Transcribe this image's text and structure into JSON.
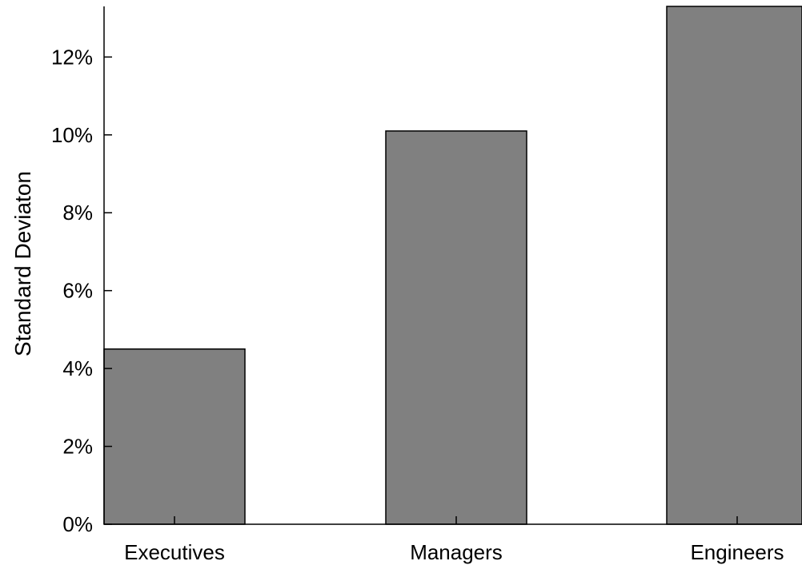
{
  "chart_data": {
    "type": "bar",
    "title": "",
    "xlabel": "",
    "ylabel": "Standard Deviaton",
    "categories": [
      "Executives",
      "Managers",
      "Engineers"
    ],
    "values": [
      4.5,
      10.1,
      13.3
    ],
    "value_unit": "%",
    "ylim": [
      0,
      13.3
    ],
    "yticks": [
      0,
      2,
      4,
      6,
      8,
      10,
      12
    ],
    "ytick_labels": [
      "0%",
      "2%",
      "4%",
      "6%",
      "8%",
      "10%",
      "12%"
    ],
    "grid": false,
    "legend": "none",
    "colors": {
      "bar_fill": "#808080",
      "bar_stroke": "#000000",
      "axis": "#000000"
    }
  }
}
